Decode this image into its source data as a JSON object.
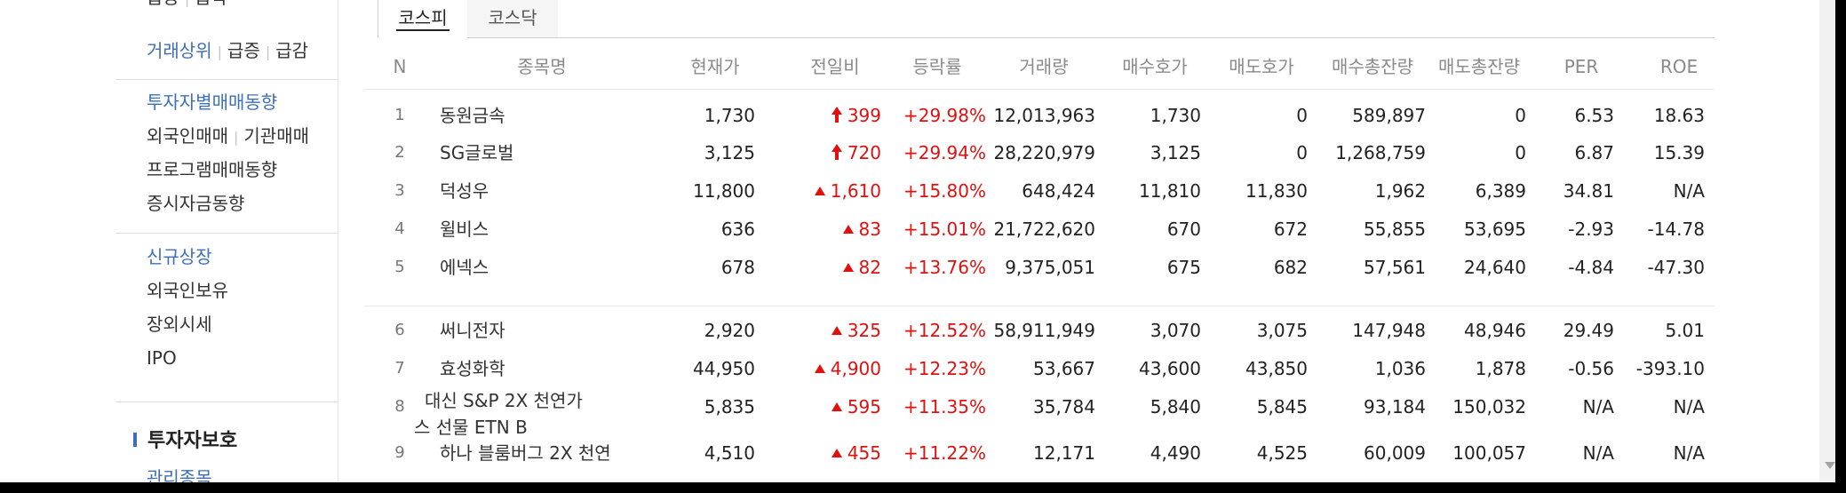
{
  "leftnav": {
    "top_partial": [
      "급등",
      "급락"
    ],
    "group1": [
      "거래상위",
      "급증",
      "급감"
    ],
    "group2_title": "투자자별매매동향",
    "group2_row1": [
      "외국인매매",
      "기관매매"
    ],
    "group2_items": [
      "프로그램매매동향",
      "증시자금동향"
    ],
    "group3_title": "신규상장",
    "group3_items": [
      "외국인보유",
      "장외시세",
      "IPO"
    ],
    "protect_title": "투자자보호",
    "managed_label": "관리종목"
  },
  "tabs": [
    {
      "label": "코스피",
      "active": true
    },
    {
      "label": "코스닥",
      "active": false
    }
  ],
  "table": {
    "headers": [
      "N",
      "종목명",
      "현재가",
      "전일비",
      "등락률",
      "거래량",
      "매수호가",
      "매도호가",
      "매수총잔량",
      "매도총잔량",
      "PER",
      "ROE"
    ],
    "rows": [
      {
        "n": "1",
        "name": "동원금속",
        "price": "1,730",
        "dir": "limit",
        "change": "399",
        "rate": "+29.98%",
        "volume": "12,013,963",
        "bid": "1,730",
        "ask": "0",
        "bid_total": "589,897",
        "ask_total": "0",
        "per": "6.53",
        "roe": "18.63"
      },
      {
        "n": "2",
        "name": "SG글로벌",
        "price": "3,125",
        "dir": "limit",
        "change": "720",
        "rate": "+29.94%",
        "volume": "28,220,979",
        "bid": "3,125",
        "ask": "0",
        "bid_total": "1,268,759",
        "ask_total": "0",
        "per": "6.87",
        "roe": "15.39"
      },
      {
        "n": "3",
        "name": "덕성우",
        "price": "11,800",
        "dir": "up",
        "change": "1,610",
        "rate": "+15.80%",
        "volume": "648,424",
        "bid": "11,810",
        "ask": "11,830",
        "bid_total": "1,962",
        "ask_total": "6,389",
        "per": "34.81",
        "roe": "N/A"
      },
      {
        "n": "4",
        "name": "윌비스",
        "price": "636",
        "dir": "up",
        "change": "83",
        "rate": "+15.01%",
        "volume": "21,722,620",
        "bid": "670",
        "ask": "672",
        "bid_total": "55,855",
        "ask_total": "53,695",
        "per": "-2.93",
        "roe": "-14.78"
      },
      {
        "n": "5",
        "name": "에넥스",
        "price": "678",
        "dir": "up",
        "change": "82",
        "rate": "+13.76%",
        "volume": "9,375,051",
        "bid": "675",
        "ask": "682",
        "bid_total": "57,561",
        "ask_total": "24,640",
        "per": "-4.84",
        "roe": "-47.30"
      },
      {
        "n": "6",
        "name": "써니전자",
        "price": "2,920",
        "dir": "up",
        "change": "325",
        "rate": "+12.52%",
        "volume": "58,911,949",
        "bid": "3,070",
        "ask": "3,075",
        "bid_total": "147,948",
        "ask_total": "48,946",
        "per": "29.49",
        "roe": "5.01"
      },
      {
        "n": "7",
        "name": "효성화학",
        "price": "44,950",
        "dir": "up",
        "change": "4,900",
        "rate": "+12.23%",
        "volume": "53,667",
        "bid": "43,600",
        "ask": "43,850",
        "bid_total": "1,036",
        "ask_total": "1,878",
        "per": "-0.56",
        "roe": "-393.10"
      },
      {
        "n": "8",
        "name": "대신 S&P 2X 천연가스 선물 ETN B",
        "price": "5,835",
        "dir": "up",
        "change": "595",
        "rate": "+11.35%",
        "volume": "35,784",
        "bid": "5,840",
        "ask": "5,845",
        "bid_total": "93,184",
        "ask_total": "150,032",
        "per": "N/A",
        "roe": "N/A"
      },
      {
        "n": "9",
        "name": "하나 블룸버그 2X 천연",
        "price": "4,510",
        "dir": "up",
        "change": "455",
        "rate": "+11.22%",
        "volume": "12,171",
        "bid": "4,490",
        "ask": "4,525",
        "bid_total": "60,009",
        "ask_total": "100,057",
        "per": "N/A",
        "roe": "N/A"
      }
    ]
  },
  "colors": {
    "accent_blue": "#3d6fb6",
    "rise_red": "#e0100f"
  }
}
